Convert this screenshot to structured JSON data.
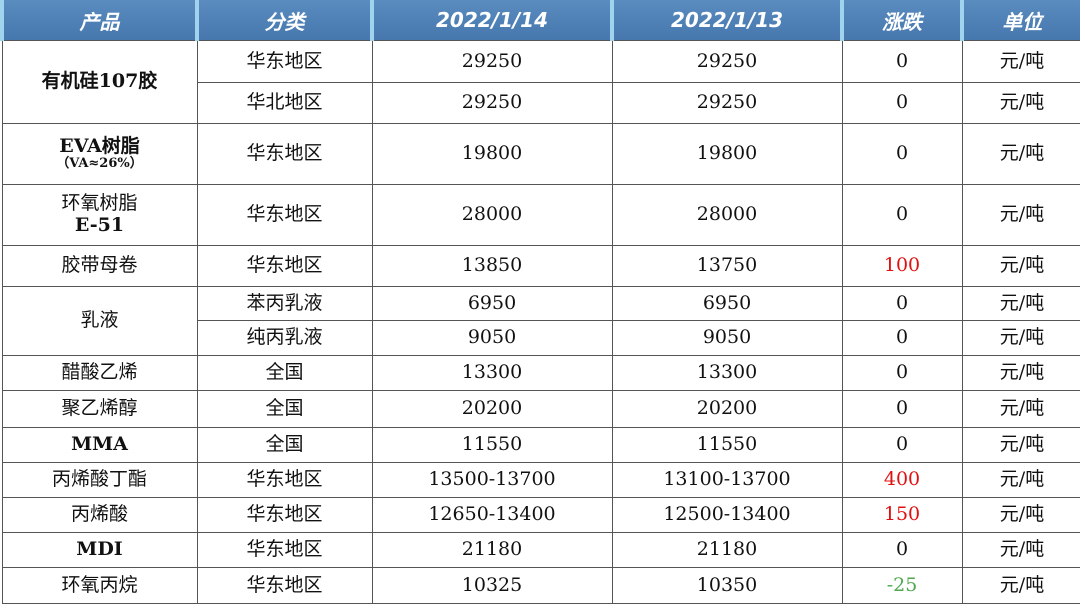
{
  "headers": [
    "产品",
    "分类",
    "2022/1/14",
    "2022/1/13",
    "涨跌",
    "单位"
  ],
  "colors": {
    "header_bg": "#4a7fb5",
    "up": "#e01010",
    "down": "#4fa84f"
  },
  "rows": [
    {
      "product": "有机硅107胶",
      "category": "华东地区",
      "p1": "29250",
      "p2": "29250",
      "change": "0",
      "unit": "元/吨"
    },
    {
      "category": "华北地区",
      "p1": "29250",
      "p2": "29250",
      "change": "0",
      "unit": "元/吨"
    },
    {
      "product": "EVA树脂",
      "product_sub": "（VA≈26%）",
      "category": "华东地区",
      "p1": "19800",
      "p2": "19800",
      "change": "0",
      "unit": "元/吨"
    },
    {
      "product": "环氧树脂",
      "product_sub": "E-51",
      "category": "华东地区",
      "p1": "28000",
      "p2": "28000",
      "change": "0",
      "unit": "元/吨"
    },
    {
      "product": "胶带母卷",
      "category": "华东地区",
      "p1": "13850",
      "p2": "13750",
      "change": "100",
      "unit": "元/吨"
    },
    {
      "product": "乳液",
      "category": "苯丙乳液",
      "p1": "6950",
      "p2": "6950",
      "change": "0",
      "unit": "元/吨"
    },
    {
      "category": "纯丙乳液",
      "p1": "9050",
      "p2": "9050",
      "change": "0",
      "unit": "元/吨"
    },
    {
      "product": "醋酸乙烯",
      "category": "全国",
      "p1": "13300",
      "p2": "13300",
      "change": "0",
      "unit": "元/吨"
    },
    {
      "product": "聚乙烯醇",
      "category": "全国",
      "p1": "20200",
      "p2": "20200",
      "change": "0",
      "unit": "元/吨"
    },
    {
      "product": "MMA",
      "category": "全国",
      "p1": "11550",
      "p2": "11550",
      "change": "0",
      "unit": "元/吨"
    },
    {
      "product": "丙烯酸丁酯",
      "category": "华东地区",
      "p1": "13500-13700",
      "p2": "13100-13700",
      "change": "400",
      "unit": "元/吨"
    },
    {
      "product": "丙烯酸",
      "category": "华东地区",
      "p1": "12650-13400",
      "p2": "12500-13400",
      "change": "150",
      "unit": "元/吨"
    },
    {
      "product": "MDI",
      "category": "华东地区",
      "p1": "21180",
      "p2": "21180",
      "change": "0",
      "unit": "元/吨"
    },
    {
      "product": "环氧丙烷",
      "category": "华东地区",
      "p1": "10325",
      "p2": "10350",
      "change": "-25",
      "unit": "元/吨"
    }
  ]
}
